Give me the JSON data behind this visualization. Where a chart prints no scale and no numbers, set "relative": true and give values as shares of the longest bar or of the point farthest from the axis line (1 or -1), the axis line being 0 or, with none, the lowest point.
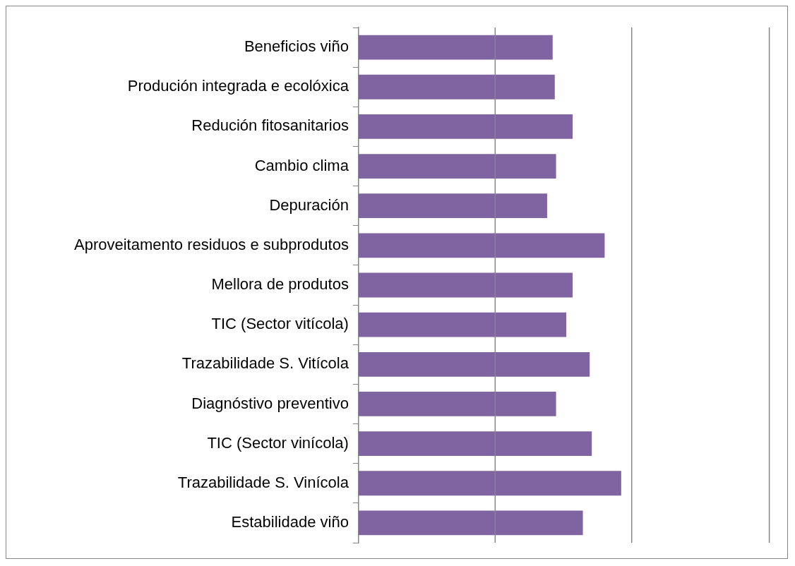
{
  "chart_data": {
    "type": "bar",
    "orientation": "horizontal",
    "relative": true,
    "legend": false,
    "color": "#8064a2",
    "categories": [
      "Beneficios viño",
      "Produción integrada e ecolóxica",
      "Redución fitosanitarios",
      "Cambio clima",
      "Depuración",
      "Aproveitamento residuos e subprodutos",
      "Mellora de produtos",
      "TIC (Sector vitícola)",
      "Trazabilidade S. Vitícola",
      "Diagnóstivo preventivo",
      "TIC (Sector vinícola)",
      "Trazabilidade S. Vinícola",
      "Estabilidade viño"
    ],
    "values": [
      0.739,
      0.747,
      0.815,
      0.752,
      0.718,
      0.937,
      0.815,
      0.791,
      0.88,
      0.752,
      0.888,
      1,
      0.854
    ],
    "ref_lines": [
      {
        "axis": "x",
        "value": 0.52,
        "color": "#868686"
      },
      {
        "axis": "x",
        "value": 1.04,
        "color": "#868686"
      },
      {
        "axis": "x",
        "value": 1.564,
        "color": "#868686"
      }
    ]
  }
}
